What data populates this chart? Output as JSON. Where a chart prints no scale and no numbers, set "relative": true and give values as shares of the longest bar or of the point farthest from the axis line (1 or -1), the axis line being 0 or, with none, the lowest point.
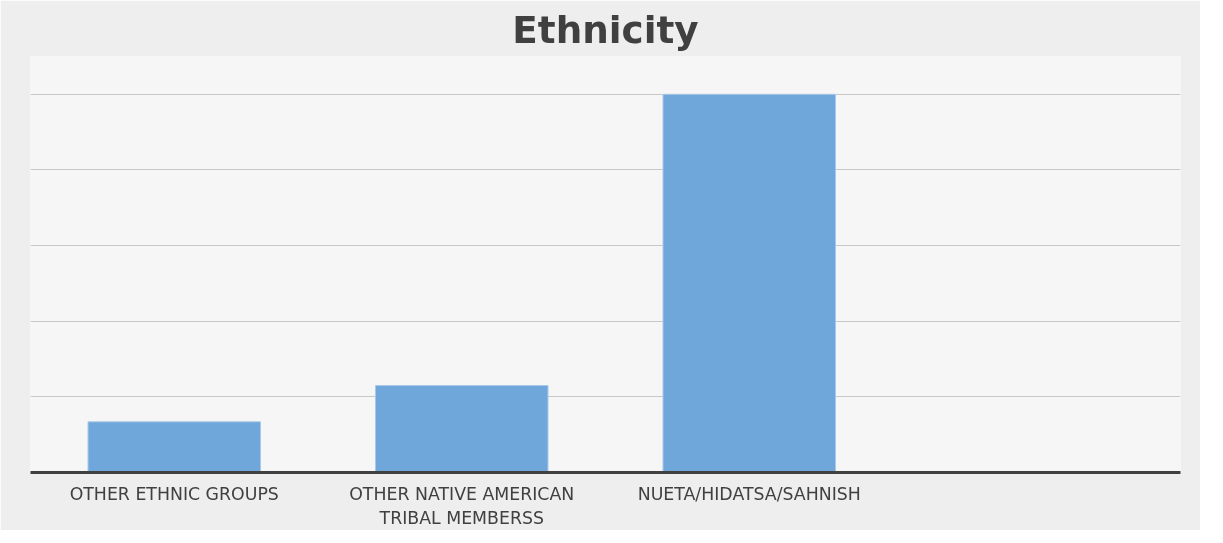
{
  "chart_data": {
    "type": "bar",
    "title": "Ethnicity",
    "categories": [
      "OTHER ETHNIC GROUPS",
      "OTHER NATIVE AMERICAN TRIBAL MEMBERSS",
      "NUETA/HIDATSA/SAHNISH",
      null
    ],
    "values": [
      0.134,
      0.23,
      1,
      null
    ],
    "color": "#70a7db",
    "relative": true,
    "grid": "y"
  }
}
